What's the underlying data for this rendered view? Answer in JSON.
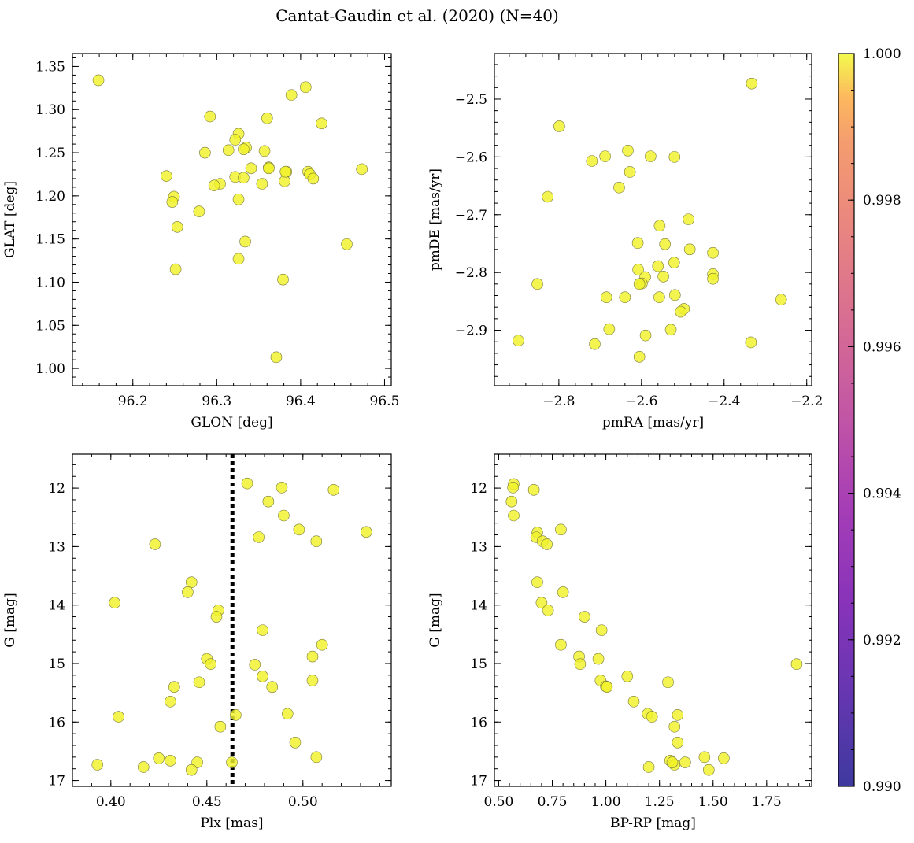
{
  "chart_data": {
    "type": "scatter",
    "title": "Cantat-Gaudin et al. (2020) (N=40)",
    "point_color": "#f0f22a",
    "colorbar": {
      "min": 0.99,
      "max": 1.0,
      "ticks": [
        "0.990",
        "0.992",
        "0.994",
        "0.996",
        "0.998",
        "1.000"
      ],
      "tick_values": [
        0.99,
        0.992,
        0.994,
        0.996,
        0.998,
        1.0
      ],
      "colormap": "plasma"
    },
    "panels": [
      {
        "id": "sky",
        "xlabel": "GLON [deg]",
        "ylabel": "GLAT [deg]",
        "xlim": [
          96.128,
          96.508
        ],
        "ylim": [
          0.98,
          1.365
        ],
        "y_inverted": false,
        "xticks": [
          96.2,
          96.3,
          96.4,
          96.5
        ],
        "xtick_labels": [
          "96.2",
          "96.3",
          "96.4",
          "96.5"
        ],
        "yticks": [
          1.0,
          1.05,
          1.1,
          1.15,
          1.2,
          1.25,
          1.3,
          1.35
        ],
        "ytick_labels": [
          "1.00",
          "1.05",
          "1.10",
          "1.15",
          "1.20",
          "1.25",
          "1.30",
          "1.35"
        ],
        "x": [
          96.159,
          96.406,
          96.389,
          96.425,
          96.292,
          96.36,
          96.326,
          96.322,
          96.335,
          96.314,
          96.286,
          96.357,
          96.332,
          96.322,
          96.362,
          96.341,
          96.409,
          96.411,
          96.415,
          96.383,
          96.473,
          96.24,
          96.304,
          96.297,
          96.326,
          96.249,
          96.247,
          96.279,
          96.253,
          96.381,
          96.354,
          96.334,
          96.455,
          96.326,
          96.251,
          96.379,
          96.371,
          96.382,
          96.362,
          96.332
        ],
        "y": [
          1.334,
          1.326,
          1.317,
          1.284,
          1.292,
          1.29,
          1.272,
          1.265,
          1.256,
          1.253,
          1.25,
          1.252,
          1.254,
          1.222,
          1.233,
          1.232,
          1.228,
          1.225,
          1.22,
          1.228,
          1.231,
          1.223,
          1.214,
          1.212,
          1.196,
          1.199,
          1.193,
          1.182,
          1.164,
          1.217,
          1.214,
          1.147,
          1.144,
          1.127,
          1.115,
          1.103,
          1.013,
          1.228,
          1.232,
          1.221
        ]
      },
      {
        "id": "pm",
        "xlabel": "pmRA [mas/yr]",
        "ylabel": "pmDE [mas/yr]",
        "xlim": [
          -2.956,
          -2.188
        ],
        "ylim": [
          -2.996,
          -2.421
        ],
        "y_inverted": false,
        "xticks": [
          -2.8,
          -2.6,
          -2.4,
          -2.2
        ],
        "xtick_labels": [
          "−2.8",
          "−2.6",
          "−2.4",
          "−2.2"
        ],
        "yticks": [
          -2.9,
          -2.8,
          -2.7,
          -2.6,
          -2.5
        ],
        "ytick_labels": [
          "−2.9",
          "−2.8",
          "−2.7",
          "−2.6",
          "−2.5"
        ],
        "x": [
          -2.333,
          -2.799,
          -2.633,
          -2.72,
          -2.688,
          -2.578,
          -2.52,
          -2.827,
          -2.628,
          -2.654,
          -2.556,
          -2.486,
          -2.609,
          -2.543,
          -2.483,
          -2.427,
          -2.521,
          -2.56,
          -2.608,
          -2.591,
          -2.547,
          -2.427,
          -2.427,
          -2.599,
          -2.852,
          -2.685,
          -2.64,
          -2.557,
          -2.519,
          -2.497,
          -2.505,
          -2.262,
          -2.678,
          -2.529,
          -2.59,
          -2.898,
          -2.713,
          -2.335,
          -2.605,
          -2.605
        ],
        "y": [
          -2.473,
          -2.547,
          -2.589,
          -2.607,
          -2.599,
          -2.599,
          -2.6,
          -2.669,
          -2.626,
          -2.653,
          -2.719,
          -2.708,
          -2.749,
          -2.751,
          -2.76,
          -2.766,
          -2.783,
          -2.789,
          -2.795,
          -2.808,
          -2.807,
          -2.803,
          -2.811,
          -2.819,
          -2.82,
          -2.843,
          -2.843,
          -2.843,
          -2.839,
          -2.863,
          -2.868,
          -2.847,
          -2.898,
          -2.899,
          -2.909,
          -2.918,
          -2.924,
          -2.921,
          -2.946,
          -2.82
        ]
      },
      {
        "id": "plx",
        "xlabel": "Plx [mas]",
        "ylabel": "G [mag]",
        "xlim": [
          0.38,
          0.546
        ],
        "ylim": [
          17.1,
          11.42
        ],
        "y_inverted": true,
        "xticks": [
          0.4,
          0.45,
          0.5
        ],
        "xtick_labels": [
          "0.40",
          "0.45",
          "0.50"
        ],
        "yticks": [
          12,
          13,
          14,
          15,
          16,
          17
        ],
        "ytick_labels": [
          "12",
          "13",
          "14",
          "15",
          "16",
          "17"
        ],
        "vline": 0.4633,
        "x": [
          0.471,
          0.489,
          0.516,
          0.482,
          0.49,
          0.498,
          0.477,
          0.507,
          0.533,
          0.423,
          0.442,
          0.44,
          0.402,
          0.456,
          0.455,
          0.479,
          0.51,
          0.505,
          0.45,
          0.452,
          0.475,
          0.479,
          0.505,
          0.446,
          0.433,
          0.484,
          0.431,
          0.404,
          0.465,
          0.492,
          0.457,
          0.496,
          0.393,
          0.417,
          0.425,
          0.431,
          0.445,
          0.463,
          0.442,
          0.507
        ],
        "y": [
          11.92,
          11.99,
          12.03,
          12.23,
          12.47,
          12.71,
          12.84,
          12.91,
          12.75,
          12.96,
          13.61,
          13.78,
          13.96,
          14.09,
          14.2,
          14.43,
          14.68,
          14.88,
          14.92,
          15.01,
          15.02,
          15.22,
          15.29,
          15.32,
          15.4,
          15.4,
          15.65,
          15.91,
          15.88,
          15.86,
          16.08,
          16.35,
          16.73,
          16.77,
          16.62,
          16.66,
          16.69,
          16.69,
          16.82,
          16.6
        ]
      },
      {
        "id": "cmd",
        "xlabel": "BP-RP [mag]",
        "ylabel": "G [mag]",
        "xlim": [
          0.48,
          1.96
        ],
        "ylim": [
          17.1,
          11.42
        ],
        "y_inverted": true,
        "xticks": [
          0.5,
          0.75,
          1.0,
          1.25,
          1.5,
          1.75
        ],
        "xtick_labels": [
          "0.50",
          "0.75",
          "1.00",
          "1.25",
          "1.50",
          "1.75"
        ],
        "yticks": [
          12,
          13,
          14,
          15,
          16,
          17
        ],
        "ytick_labels": [
          "12",
          "13",
          "14",
          "15",
          "16",
          "17"
        ],
        "x": [
          0.57,
          0.567,
          0.664,
          0.56,
          0.57,
          0.79,
          0.68,
          0.675,
          0.705,
          0.725,
          0.68,
          0.8,
          0.7,
          0.73,
          0.9,
          0.98,
          0.79,
          0.875,
          0.965,
          0.88,
          1.89,
          0.975,
          1.0,
          1.1,
          1.29,
          1.13,
          1.195,
          1.215,
          1.335,
          1.32,
          1.335,
          1.46,
          1.55,
          1.3,
          1.32,
          1.37,
          1.2,
          1.48,
          1.31,
          1.005
        ],
        "y": [
          11.93,
          11.99,
          12.03,
          12.23,
          12.47,
          12.71,
          12.76,
          12.84,
          12.91,
          12.96,
          13.61,
          13.78,
          13.96,
          14.09,
          14.2,
          14.43,
          14.68,
          14.88,
          14.92,
          15.01,
          15.01,
          15.29,
          15.39,
          15.22,
          15.32,
          15.65,
          15.86,
          15.91,
          15.88,
          16.08,
          16.35,
          16.6,
          16.62,
          16.66,
          16.73,
          16.69,
          16.77,
          16.82,
          16.69,
          15.4
        ]
      }
    ]
  }
}
